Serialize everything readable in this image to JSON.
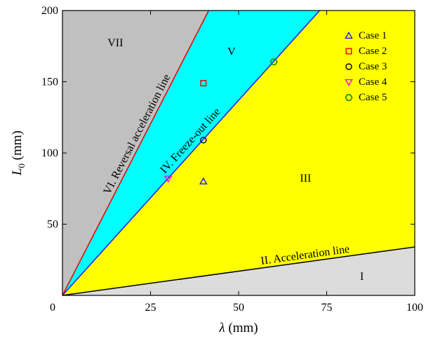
{
  "chart_data": {
    "type": "scatter",
    "title": "",
    "xlabel_symbol": "λ",
    "xlabel_unit": " (mm)",
    "ylabel_symbol": "L",
    "ylabel_subscript": "0",
    "ylabel_unit": " (mm)",
    "xlim": [
      0,
      100
    ],
    "ylim": [
      0,
      200
    ],
    "x_ticks": [
      0,
      25,
      50,
      75,
      100
    ],
    "y_ticks": [
      50,
      100,
      150,
      200
    ],
    "grid": false,
    "legend_position": "top-right",
    "series": [
      {
        "name": "Case 1",
        "marker": "triangle-up",
        "color": "#1a1aff",
        "points": [
          [
            40,
            80
          ]
        ]
      },
      {
        "name": "Case 2",
        "marker": "square",
        "color": "#e60000",
        "points": [
          [
            40,
            149
          ]
        ]
      },
      {
        "name": "Case 3",
        "marker": "circle",
        "color": "#000000",
        "points": [
          [
            40,
            109
          ]
        ]
      },
      {
        "name": "Case 4",
        "marker": "triangle-down",
        "color": "#ff00ff",
        "points": [
          [
            30,
            82
          ]
        ]
      },
      {
        "name": "Case 5",
        "marker": "hexagon",
        "color": "#008000",
        "points": [
          [
            60,
            164
          ]
        ]
      }
    ],
    "lines": [
      {
        "name": "II. Acceleration line",
        "color": "#000000",
        "from": [
          0,
          0
        ],
        "to": [
          100,
          34
        ]
      },
      {
        "name": "IV. Freeze-out line",
        "color": "#1a1aff",
        "from": [
          0,
          0
        ],
        "to": [
          73,
          200
        ]
      },
      {
        "name": "VI. Reversal acceleration line",
        "color": "#e60000",
        "from": [
          0,
          0
        ],
        "to": [
          41.5,
          200
        ]
      }
    ],
    "regions": [
      {
        "label": "I",
        "color": "#dcdcdc",
        "x": 85,
        "y": 13
      },
      {
        "label": "III",
        "color": "#ffff00",
        "x": 69,
        "y": 82
      },
      {
        "label": "V",
        "color": "#00ffff",
        "x": 48,
        "y": 171
      },
      {
        "label": "VII",
        "color": "#c0c0c0",
        "x": 15,
        "y": 177
      }
    ],
    "line_labels": [
      {
        "text": "II. Acceleration line",
        "x": 69,
        "y": 26
      },
      {
        "text": "IV. Freeze-out line",
        "x": 37,
        "y": 107
      },
      {
        "text": "VI. Reversal acceleration line",
        "x": 22,
        "y": 112
      }
    ]
  }
}
